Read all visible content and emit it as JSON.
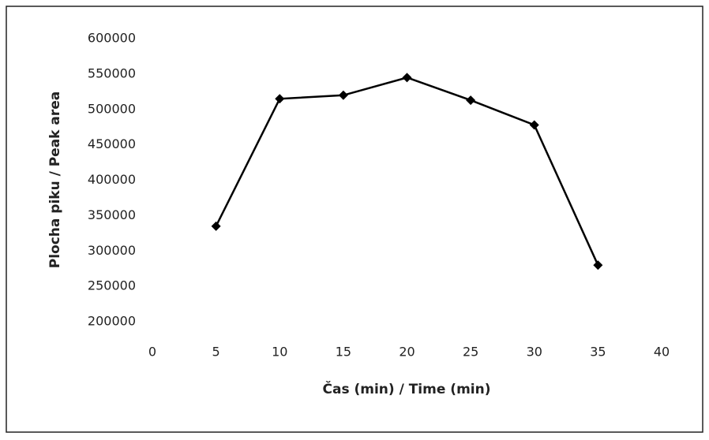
{
  "chart_data": {
    "type": "line",
    "x_label": "Čas (min) / Time (min)",
    "y_label": "Plocha piku / Peak area",
    "x": [
      5,
      10,
      15,
      20,
      25,
      30,
      35
    ],
    "series": [
      {
        "name": "Peak area",
        "color": "#000000",
        "values": [
          335000,
          515000,
          520000,
          545000,
          513000,
          478000,
          280000
        ]
      }
    ],
    "xlim": [
      0,
      40
    ],
    "xticks": [
      0,
      5,
      10,
      15,
      20,
      25,
      30,
      35,
      40
    ],
    "ylim": [
      200000,
      600000
    ],
    "yticks": [
      200000,
      250000,
      300000,
      350000,
      400000,
      450000,
      500000,
      550000,
      600000
    ],
    "grid": false,
    "legend": false
  }
}
